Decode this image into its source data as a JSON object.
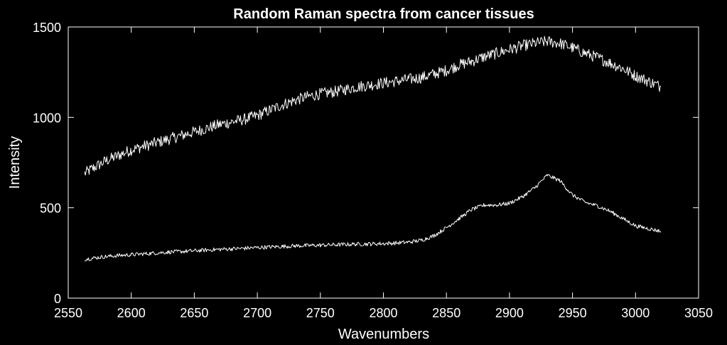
{
  "chart_data": {
    "type": "line",
    "title": "Random Raman spectra from cancer tissues",
    "xlabel": "Wavenumbers",
    "ylabel": "Intensity",
    "xlim": [
      2550,
      3050
    ],
    "ylim": [
      0,
      1500
    ],
    "xticks": [
      2550,
      2600,
      2650,
      2700,
      2750,
      2800,
      2850,
      2900,
      2950,
      3000,
      3050
    ],
    "yticks": [
      0,
      500,
      1000,
      1500
    ],
    "grid": false,
    "background_color": "#000000",
    "foreground_color": "#ffffff",
    "series": [
      {
        "x": [
          2563,
          2570,
          2580,
          2590,
          2600,
          2610,
          2620,
          2630,
          2640,
          2650,
          2660,
          2670,
          2680,
          2690,
          2700,
          2710,
          2720,
          2730,
          2740,
          2750,
          2760,
          2770,
          2780,
          2790,
          2800,
          2810,
          2820,
          2830,
          2840,
          2850,
          2860,
          2870,
          2880,
          2890,
          2900,
          2910,
          2920,
          2930,
          2940,
          2950,
          2960,
          2970,
          2980,
          2990,
          3000,
          3010,
          3020
        ],
        "values": [
          690,
          720,
          760,
          790,
          820,
          840,
          860,
          880,
          900,
          920,
          940,
          960,
          975,
          990,
          1010,
          1040,
          1070,
          1095,
          1115,
          1130,
          1140,
          1155,
          1170,
          1180,
          1190,
          1200,
          1210,
          1220,
          1240,
          1260,
          1290,
          1310,
          1335,
          1355,
          1375,
          1395,
          1410,
          1420,
          1410,
          1385,
          1355,
          1330,
          1300,
          1270,
          1230,
          1200,
          1170
        ]
      },
      {
        "x": [
          2563,
          2570,
          2580,
          2590,
          2600,
          2610,
          2620,
          2630,
          2640,
          2650,
          2660,
          2670,
          2680,
          2690,
          2700,
          2710,
          2720,
          2730,
          2740,
          2750,
          2760,
          2770,
          2780,
          2790,
          2800,
          2810,
          2820,
          2830,
          2840,
          2850,
          2860,
          2870,
          2880,
          2890,
          2900,
          2910,
          2920,
          2930,
          2940,
          2950,
          2960,
          2970,
          2980,
          2990,
          3000,
          3010,
          3020
        ],
        "values": [
          215,
          222,
          230,
          236,
          240,
          245,
          250,
          255,
          258,
          262,
          266,
          270,
          273,
          276,
          280,
          283,
          286,
          289,
          291,
          293,
          295,
          297,
          299,
          300,
          302,
          305,
          310,
          320,
          345,
          390,
          440,
          490,
          515,
          515,
          525,
          560,
          610,
          680,
          650,
          570,
          530,
          510,
          480,
          440,
          400,
          385,
          370
        ]
      }
    ]
  }
}
